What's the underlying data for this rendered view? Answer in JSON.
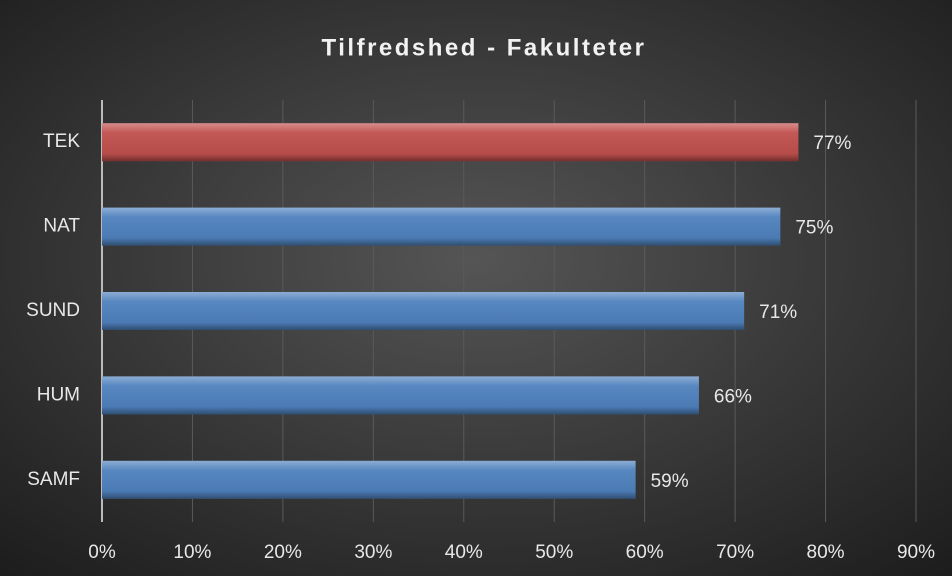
{
  "chart_data": {
    "type": "barh",
    "title": "Tilfredshed - Fakulteter",
    "categories": [
      "TEK",
      "NAT",
      "SUND",
      "HUM",
      "SAMF"
    ],
    "values": [
      77,
      75,
      71,
      66,
      59
    ],
    "value_labels": [
      "77%",
      "75%",
      "71%",
      "66%",
      "59%"
    ],
    "colors": [
      "#c0504d",
      "#4f81bd",
      "#4f81bd",
      "#4f81bd",
      "#4f81bd"
    ],
    "xlim": [
      0,
      90
    ],
    "xticks": [
      {
        "value": 0,
        "label": "0%"
      },
      {
        "value": 10,
        "label": "10%"
      },
      {
        "value": 20,
        "label": "20%"
      },
      {
        "value": 30,
        "label": "30%"
      },
      {
        "value": 40,
        "label": "40%"
      },
      {
        "value": 50,
        "label": "50%"
      },
      {
        "value": 60,
        "label": "60%"
      },
      {
        "value": 70,
        "label": "70%"
      },
      {
        "value": 80,
        "label": "80%"
      },
      {
        "value": 90,
        "label": "90%"
      }
    ],
    "grid": true
  }
}
